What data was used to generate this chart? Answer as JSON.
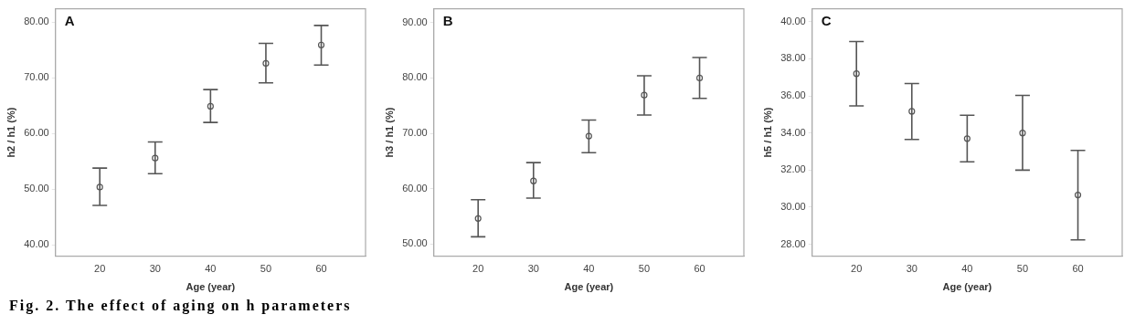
{
  "chart_data": [
    {
      "type": "scatter",
      "xlabel": "Age (year)",
      "ylabel": "h2 / h1 (%)",
      "annotations": [
        "A",
        "Fig. 2. The effect of aging on h parameters"
      ],
      "x": [
        20,
        30,
        40,
        50,
        60
      ],
      "marker": "circle",
      "grid": false,
      "legend": false,
      "series": [
        {
          "color": "#555555",
          "values": [
            50.4,
            55.6,
            64.9,
            72.6,
            75.9
          ],
          "errors": [
            [
              47.1,
              53.8
            ],
            [
              52.8,
              58.5
            ],
            [
              62.0,
              67.9
            ],
            [
              69.1,
              76.2
            ],
            [
              72.3,
              79.4
            ]
          ]
        }
      ],
      "xlim": [
        12,
        68
      ],
      "xticks": [
        20,
        30,
        40,
        50,
        60
      ],
      "ylim": [
        38,
        82.4
      ],
      "yticks": [
        {
          "value": 40,
          "label": "40.00"
        },
        {
          "value": 50,
          "label": "50.00"
        },
        {
          "value": 60,
          "label": "60.00"
        },
        {
          "value": 70,
          "label": "70.00"
        },
        {
          "value": 80,
          "label": "80.00"
        }
      ]
    },
    {
      "type": "scatter",
      "xlabel": "Age (year)",
      "ylabel": "h3 / h1 (%)",
      "annotations": [
        "B"
      ],
      "x": [
        20,
        30,
        40,
        50,
        60
      ],
      "marker": "circle",
      "grid": false,
      "legend": false,
      "series": [
        {
          "color": "#555555",
          "values": [
            54.6,
            61.4,
            69.5,
            76.9,
            80.0
          ],
          "errors": [
            [
              51.3,
              58.0
            ],
            [
              58.3,
              64.7
            ],
            [
              66.5,
              72.4
            ],
            [
              73.3,
              80.4
            ],
            [
              76.3,
              83.7
            ]
          ]
        }
      ],
      "xlim": [
        12,
        68
      ],
      "xticks": [
        20,
        30,
        40,
        50,
        60
      ],
      "ylim": [
        47.8,
        92.5
      ],
      "yticks": [
        {
          "value": 50,
          "label": "50.00"
        },
        {
          "value": 60,
          "label": "60.00"
        },
        {
          "value": 70,
          "label": "70.00"
        },
        {
          "value": 80,
          "label": "80.00"
        },
        {
          "value": 90,
          "label": "90.00"
        }
      ]
    },
    {
      "type": "scatter",
      "xlabel": "Age (year)",
      "ylabel": "h5 / h1 (%)",
      "annotations": [
        "C"
      ],
      "x": [
        20,
        30,
        40,
        50,
        60
      ],
      "marker": "circle",
      "grid": false,
      "legend": false,
      "series": [
        {
          "color": "#555555",
          "values": [
            37.2,
            35.17,
            33.7,
            34.0,
            30.66
          ],
          "errors": [
            [
              35.46,
              38.93
            ],
            [
              33.65,
              36.67
            ],
            [
              32.45,
              34.96
            ],
            [
              32.0,
              36.03
            ],
            [
              28.24,
              33.06
            ]
          ]
        }
      ],
      "xlim": [
        12,
        68
      ],
      "xticks": [
        20,
        30,
        40,
        50,
        60
      ],
      "ylim": [
        27.36,
        40.7
      ],
      "yticks": [
        {
          "value": 28,
          "label": "28.00"
        },
        {
          "value": 30,
          "label": "30.00"
        },
        {
          "value": 32,
          "label": "32.00"
        },
        {
          "value": 34,
          "label": "34.00"
        },
        {
          "value": 36,
          "label": "36.00"
        },
        {
          "value": 38,
          "label": "38.00"
        },
        {
          "value": 40,
          "label": "40.00"
        }
      ]
    }
  ]
}
